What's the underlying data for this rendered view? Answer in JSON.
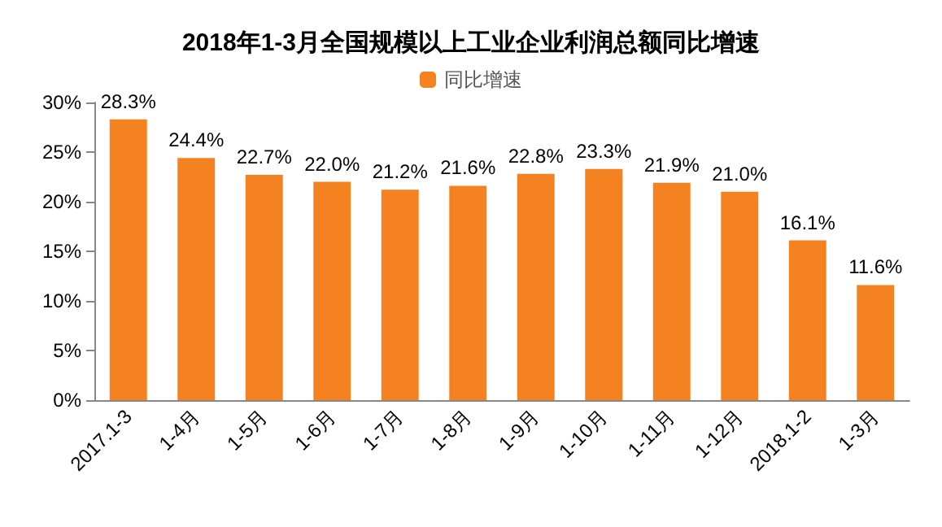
{
  "chart_data": {
    "type": "bar",
    "title": "2018年1-3月全国规模以上工业企业利润总额同比增速",
    "categories": [
      "2017.1-3",
      "1-4月",
      "1-5月",
      "1-6月",
      "1-7月",
      "1-8月",
      "1-9月",
      "1-10月",
      "1-11月",
      "1-12月",
      "2018.1-2",
      "1-3月"
    ],
    "series": [
      {
        "name": "同比增速",
        "color": "#f58220",
        "values": [
          28.3,
          24.4,
          22.7,
          22.0,
          21.2,
          21.6,
          22.8,
          23.3,
          21.9,
          21.0,
          16.1,
          11.6
        ],
        "value_labels": [
          "28.3%",
          "24.4%",
          "22.7%",
          "22.0%",
          "21.2%",
          "21.6%",
          "22.8%",
          "23.3%",
          "21.9%",
          "21.0%",
          "16.1%",
          "11.6%"
        ]
      }
    ],
    "ylim": [
      0,
      30
    ],
    "yticks": [
      {
        "value": 0,
        "label": "0%"
      },
      {
        "value": 5,
        "label": "5%"
      },
      {
        "value": 10,
        "label": "10%"
      },
      {
        "value": 15,
        "label": "15%"
      },
      {
        "value": 20,
        "label": "20%"
      },
      {
        "value": 25,
        "label": "25%"
      },
      {
        "value": 30,
        "label": "30%"
      }
    ],
    "grid": false,
    "legend": "top"
  }
}
